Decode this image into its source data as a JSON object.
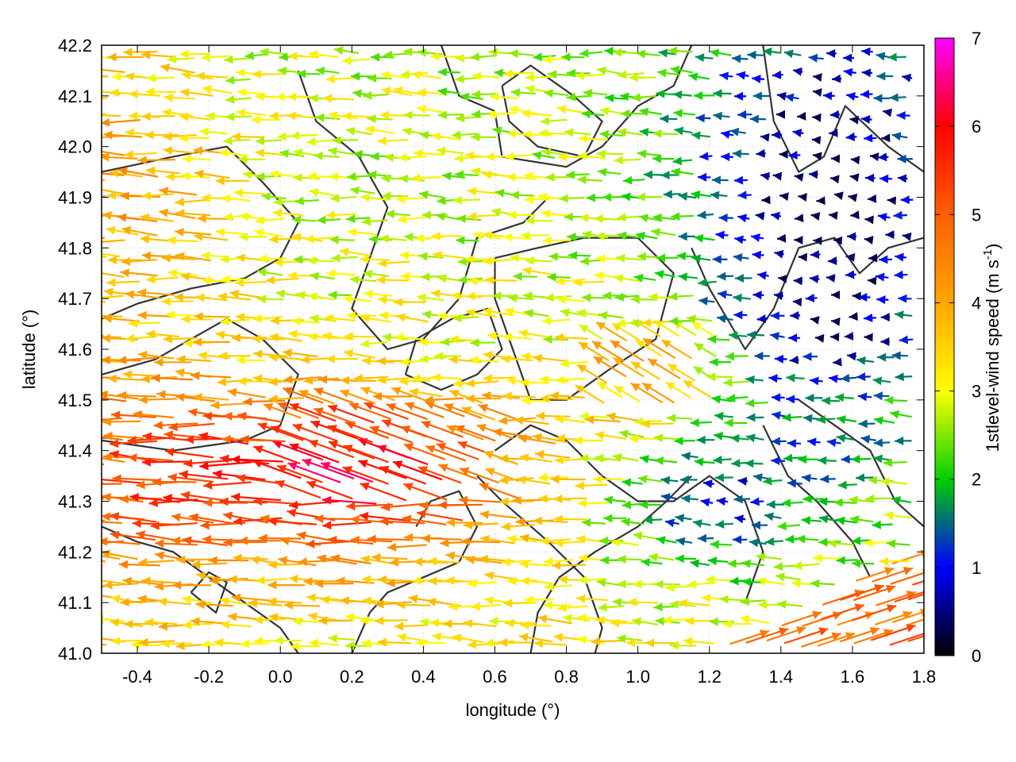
{
  "chart_data": {
    "type": "vector_field_with_contours",
    "xlabel": "longitude (°)",
    "ylabel": "latitude (°)",
    "xlim": [
      -0.5,
      1.8
    ],
    "ylim": [
      41.0,
      42.2
    ],
    "x_ticks": [
      -0.4,
      -0.2,
      0.0,
      0.2,
      0.4,
      0.6,
      0.8,
      1.0,
      1.2,
      1.4,
      1.6,
      1.8
    ],
    "x_tick_labels": [
      "-0.4",
      "-0.2",
      "0.0",
      "0.2",
      "0.4",
      "0.6",
      "0.8",
      "1.0",
      "1.2",
      "1.4",
      "1.6",
      "1.8"
    ],
    "y_ticks": [
      41.0,
      41.1,
      41.2,
      41.3,
      41.4,
      41.5,
      41.6,
      41.7,
      41.8,
      41.9,
      42.0,
      42.1,
      42.2
    ],
    "y_tick_labels": [
      "41.0",
      "41.1",
      "41.2",
      "41.3",
      "41.4",
      "41.5",
      "41.6",
      "41.7",
      "41.8",
      "41.9",
      "42.0",
      "42.1",
      "42.2"
    ],
    "grid": true,
    "colorbar": {
      "label_prefix": "1stlevel-wind speed (m s",
      "label_sup": "-1",
      "label_suffix": ")",
      "range": [
        0,
        7
      ],
      "ticks": [
        0,
        1,
        2,
        3,
        4,
        5,
        6,
        7
      ],
      "tick_labels": [
        "0",
        "1",
        "2",
        "3",
        "4",
        "5",
        "6",
        "7"
      ],
      "palette": [
        {
          "value": 0,
          "color": "#000000"
        },
        {
          "value": 1,
          "color": "#0000ff"
        },
        {
          "value": 2,
          "color": "#00d000"
        },
        {
          "value": 3,
          "color": "#ffff00"
        },
        {
          "value": 4,
          "color": "#ffa500"
        },
        {
          "value": 5,
          "color": "#ff6000"
        },
        {
          "value": 6,
          "color": "#ff0000"
        },
        {
          "value": 7,
          "color": "#ff00ff"
        }
      ]
    },
    "contour_color": "#333333",
    "vector_field_description": "Mostly westward surface winds; strongest (5-7 m/s, red/magenta) over 41.2-41.5 N, 0.0-0.8 E; weak winds (0-2 m/s, blue/green) east of 1.2 E; east-northeastward orange flow in the south-east corner.",
    "contours": [
      [
        [
          -0.5,
          41.95
        ],
        [
          -0.3,
          41.98
        ],
        [
          -0.15,
          42.0
        ],
        [
          -0.05,
          41.93
        ],
        [
          0.05,
          41.85
        ],
        [
          0.0,
          41.78
        ],
        [
          -0.1,
          41.74
        ],
        [
          -0.25,
          41.72
        ],
        [
          -0.4,
          41.69
        ],
        [
          -0.5,
          41.66
        ]
      ],
      [
        [
          -0.5,
          41.55
        ],
        [
          -0.35,
          41.58
        ],
        [
          -0.25,
          41.62
        ],
        [
          -0.15,
          41.66
        ],
        [
          -0.05,
          41.62
        ],
        [
          0.05,
          41.55
        ],
        [
          0.0,
          41.45
        ],
        [
          -0.1,
          41.42
        ],
        [
          -0.3,
          41.4
        ],
        [
          -0.5,
          41.42
        ]
      ],
      [
        [
          0.05,
          42.15
        ],
        [
          0.1,
          42.05
        ],
        [
          0.22,
          41.98
        ],
        [
          0.3,
          41.88
        ],
        [
          0.25,
          41.78
        ],
        [
          0.2,
          41.68
        ],
        [
          0.3,
          41.6
        ],
        [
          0.4,
          41.62
        ],
        [
          0.5,
          41.7
        ],
        [
          0.55,
          41.82
        ],
        [
          0.68,
          41.85
        ],
        [
          0.75,
          41.9
        ]
      ],
      [
        [
          0.45,
          42.2
        ],
        [
          0.5,
          42.1
        ],
        [
          0.6,
          42.07
        ],
        [
          0.62,
          41.98
        ],
        [
          0.8,
          41.96
        ],
        [
          0.9,
          42.0
        ],
        [
          1.0,
          42.08
        ],
        [
          1.1,
          42.12
        ],
        [
          1.15,
          42.2
        ]
      ],
      [
        [
          0.62,
          42.12
        ],
        [
          0.7,
          42.16
        ],
        [
          0.82,
          42.1
        ],
        [
          0.9,
          42.05
        ],
        [
          0.85,
          41.98
        ],
        [
          0.72,
          42.0
        ],
        [
          0.64,
          42.05
        ],
        [
          0.62,
          42.12
        ]
      ],
      [
        [
          1.35,
          42.2
        ],
        [
          1.38,
          42.05
        ],
        [
          1.45,
          41.95
        ],
        [
          1.52,
          41.98
        ],
        [
          1.58,
          42.08
        ],
        [
          1.7,
          42.0
        ],
        [
          1.8,
          41.95
        ]
      ],
      [
        [
          0.6,
          41.78
        ],
        [
          0.72,
          41.8
        ],
        [
          0.85,
          41.82
        ],
        [
          1.0,
          41.82
        ],
        [
          1.1,
          41.75
        ],
        [
          1.05,
          41.62
        ],
        [
          0.92,
          41.56
        ],
        [
          0.8,
          41.5
        ],
        [
          0.7,
          41.5
        ],
        [
          0.65,
          41.6
        ],
        [
          0.6,
          41.7
        ],
        [
          0.6,
          41.78
        ]
      ],
      [
        [
          1.15,
          41.8
        ],
        [
          1.2,
          41.72
        ],
        [
          1.3,
          41.6
        ],
        [
          1.38,
          41.68
        ],
        [
          1.45,
          41.8
        ],
        [
          1.55,
          41.82
        ],
        [
          1.62,
          41.75
        ],
        [
          1.7,
          41.8
        ],
        [
          1.8,
          41.82
        ]
      ],
      [
        [
          0.55,
          41.35
        ],
        [
          0.62,
          41.3
        ],
        [
          0.75,
          41.22
        ],
        [
          0.85,
          41.15
        ],
        [
          0.9,
          41.05
        ],
        [
          0.88,
          41.0
        ]
      ],
      [
        [
          0.6,
          41.4
        ],
        [
          0.7,
          41.45
        ],
        [
          0.8,
          41.42
        ],
        [
          0.9,
          41.35
        ],
        [
          1.0,
          41.3
        ],
        [
          1.1,
          41.3
        ],
        [
          1.2,
          41.35
        ],
        [
          1.3,
          41.3
        ],
        [
          1.35,
          41.2
        ],
        [
          1.3,
          41.1
        ]
      ],
      [
        [
          0.7,
          41.0
        ],
        [
          0.72,
          41.08
        ],
        [
          0.78,
          41.15
        ],
        [
          0.88,
          41.2
        ],
        [
          1.0,
          41.25
        ],
        [
          1.08,
          41.3
        ],
        [
          1.15,
          41.35
        ]
      ],
      [
        [
          0.2,
          41.0
        ],
        [
          0.25,
          41.08
        ],
        [
          0.3,
          41.12
        ],
        [
          0.4,
          41.15
        ],
        [
          0.5,
          41.18
        ],
        [
          0.55,
          41.25
        ],
        [
          0.5,
          41.32
        ],
        [
          0.42,
          41.3
        ],
        [
          0.38,
          41.25
        ]
      ],
      [
        [
          -0.5,
          41.25
        ],
        [
          -0.4,
          41.22
        ],
        [
          -0.3,
          41.2
        ],
        [
          -0.2,
          41.15
        ],
        [
          -0.1,
          41.1
        ],
        [
          0.0,
          41.05
        ],
        [
          0.05,
          41.0
        ]
      ],
      [
        [
          1.45,
          41.5
        ],
        [
          1.55,
          41.45
        ],
        [
          1.65,
          41.4
        ],
        [
          1.72,
          41.3
        ],
        [
          1.8,
          41.25
        ]
      ],
      [
        [
          1.35,
          41.45
        ],
        [
          1.42,
          41.35
        ],
        [
          1.5,
          41.3
        ],
        [
          1.6,
          41.22
        ],
        [
          1.65,
          41.15
        ]
      ],
      [
        [
          -0.25,
          41.12
        ],
        [
          -0.2,
          41.16
        ],
        [
          -0.15,
          41.14
        ],
        [
          -0.18,
          41.08
        ],
        [
          -0.25,
          41.12
        ]
      ],
      [
        [
          0.35,
          41.55
        ],
        [
          0.45,
          41.52
        ],
        [
          0.55,
          41.55
        ],
        [
          0.62,
          41.6
        ],
        [
          0.58,
          41.68
        ],
        [
          0.48,
          41.66
        ],
        [
          0.38,
          41.62
        ],
        [
          0.35,
          41.55
        ]
      ]
    ]
  }
}
